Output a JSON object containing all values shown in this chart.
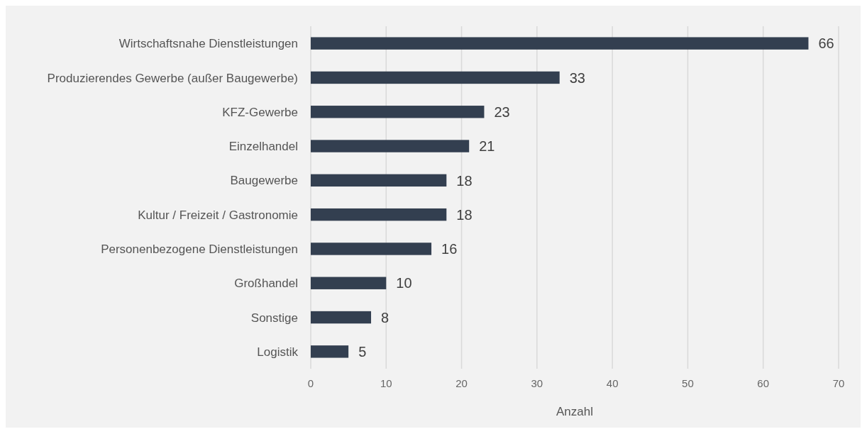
{
  "chart_data": {
    "type": "bar",
    "orientation": "horizontal",
    "xlabel": "Anzahl",
    "categories": [
      "Wirtschaftsnahe Dienstleistungen",
      "Produzierendes Gewerbe (außer Baugewerbe)",
      "KFZ-Gewerbe",
      "Einzelhandel",
      "Baugewerbe",
      "Kultur / Freizeit / Gastronomie",
      "Personenbezogene Dienstleistungen",
      "Großhandel",
      "Sonstige",
      "Logistik"
    ],
    "values": [
      66,
      33,
      23,
      21,
      18,
      18,
      16,
      10,
      8,
      5
    ],
    "color": "#333f50",
    "xlim": [
      0,
      70
    ],
    "xticks": [
      0,
      10,
      20,
      30,
      40,
      50,
      60,
      70
    ],
    "grid": "x",
    "data_labels": true
  }
}
